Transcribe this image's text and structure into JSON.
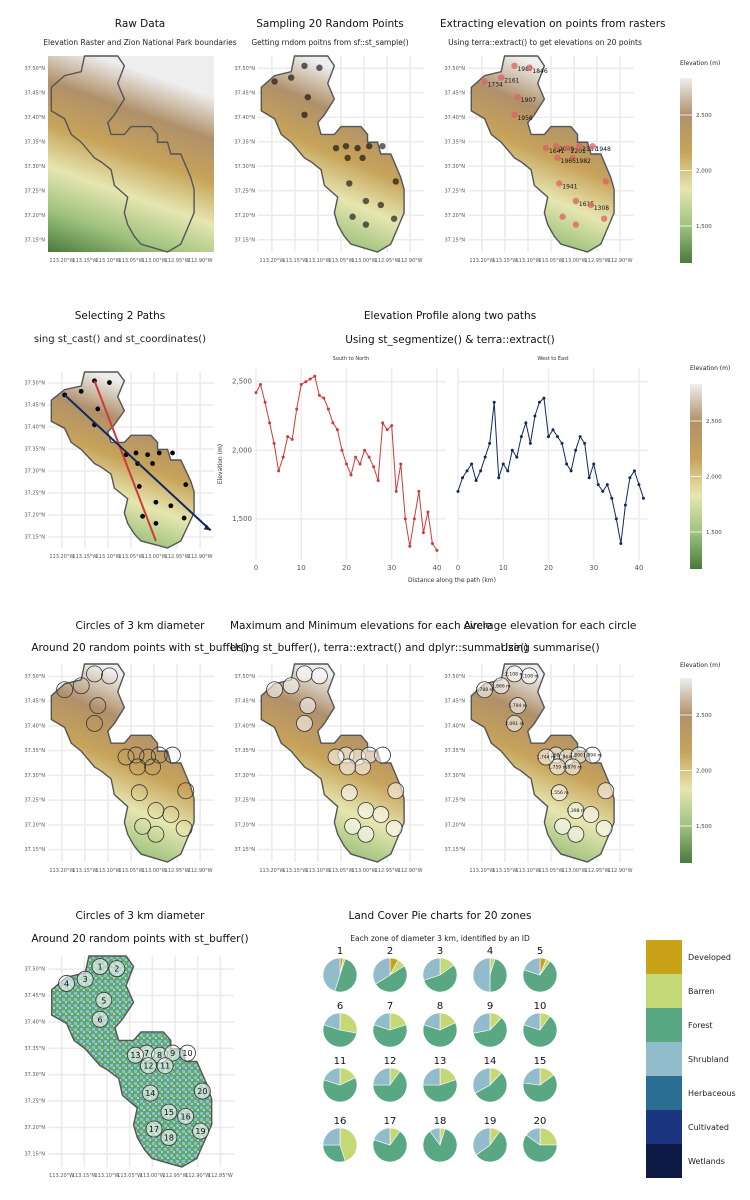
{
  "colors": {
    "shield_outline": "#555555",
    "grid": "#ebebeb",
    "red_path": "#d03a36",
    "blue_path": "#0f2a5c",
    "ramp": [
      "#4a7a3d",
      "#9fc27e",
      "#e6e6b0",
      "#c7a35a",
      "#b0906a",
      "#eeeeee"
    ]
  },
  "panels": {
    "raw": {
      "title": "Raw Data",
      "subtitle": "Elevation Raster and Zion National Park boundaries"
    },
    "sample": {
      "title": "Sampling 20 Random Points",
      "subtitle": "Getting rndom poitns from sf::st_sample()"
    },
    "extract": {
      "title": "Extracting elevation on points from rasters",
      "subtitle": "Using terra::extract() to get elevations on 20 points"
    },
    "paths": {
      "title": "Selecting 2 Paths",
      "subtitle": "sing st_cast() and st_coordinates()"
    },
    "profile": {
      "title": "Elevation Profile along two paths",
      "subtitle": "Using st_segmentize() & terra::extract()",
      "facet_left": "South to North",
      "facet_right": "West to East",
      "xlabel": "Distance along the path (km)",
      "ylabel": "Elevation (m)"
    },
    "circles": {
      "title": "Circles of 3 km diameter",
      "subtitle": "Around 20 random points with st_buffer()"
    },
    "minmax": {
      "title": "Maximum and Minimum elevations for each circle",
      "subtitle": "Using st_buffer(), terra::extract() and dplyr::summarize()"
    },
    "average": {
      "title": "Average elevation for each circle",
      "subtitle": "Using summarise()"
    },
    "landmap": {
      "title": "Circles of 3 km diameter",
      "subtitle": "Around 20 random points with st_buffer()"
    },
    "pies": {
      "title": "Land Cover Pie charts for 20 zones",
      "subtitle": "Each zone of diameter 3 km, identified by an ID"
    }
  },
  "map_axes": {
    "lat_ticks": [
      "37.50°N",
      "37.45°N",
      "37.40°N",
      "37.35°N",
      "37.30°N",
      "37.25°N",
      "37.20°N",
      "37.15°N"
    ],
    "lon_ticks": [
      "113.20°W",
      "113.15°W",
      "113.10°W",
      "113.05°W",
      "113.00°W",
      "112.95°W",
      "112.90°W"
    ],
    "lon_ticks_landmap": [
      "113.20°W",
      "113.15°W",
      "113.10°W",
      "113.05°W",
      "113.00°W",
      "112.95°W",
      "112.90°W",
      "112.85°W"
    ]
  },
  "elevation_legend": {
    "title": "Elevation (m)",
    "breaks": [
      "2,500",
      "2,000",
      "1,500"
    ]
  },
  "extract_labels": [
    "1987",
    "1846",
    "2161",
    "1734",
    "1907",
    "1956",
    "2049",
    "2201",
    "2187",
    "1948",
    "1982",
    "1965",
    "1641",
    "1941",
    "1615",
    "1308"
  ],
  "average_labels": [
    "2,108 m",
    "2,108 m",
    "1,866 m",
    "1,788 m",
    "1,794 m",
    "2,091 m",
    "1,968 m",
    "1,964 m",
    "1,890 m",
    "1,994 m",
    "1,876 m",
    "1,759 m",
    "1,744 m",
    "1,556 m",
    "1,398 m"
  ],
  "chart_data": [
    {
      "type": "line",
      "title": "South to North",
      "xlabel": "Distance along the path (km)",
      "ylabel": "Elevation (m)",
      "xlim": [
        0,
        42
      ],
      "ylim": [
        1200,
        2600
      ],
      "x_ticks": [
        "0",
        "10",
        "20",
        "30",
        "40"
      ],
      "y_ticks": [
        "1,500",
        "2,000",
        "2,500"
      ],
      "x": [
        0,
        1,
        2,
        3,
        4,
        5,
        6,
        7,
        8,
        9,
        10,
        11,
        12,
        13,
        14,
        15,
        16,
        17,
        18,
        19,
        20,
        21,
        22,
        23,
        24,
        25,
        26,
        27,
        28,
        29,
        30,
        31,
        32,
        33,
        34,
        35,
        36,
        37,
        38,
        39,
        40
      ],
      "values": [
        2420,
        2480,
        2350,
        2200,
        2050,
        1850,
        1950,
        2100,
        2080,
        2300,
        2480,
        2500,
        2520,
        2540,
        2400,
        2380,
        2300,
        2200,
        2150,
        2000,
        1900,
        1820,
        1950,
        1900,
        2000,
        1950,
        1880,
        1780,
        2200,
        2150,
        2180,
        1700,
        1900,
        1500,
        1300,
        1500,
        1700,
        1400,
        1550,
        1320,
        1270
      ]
    },
    {
      "type": "line",
      "title": "West to East",
      "xlabel": "Distance along the path (km)",
      "ylabel": "Elevation (m)",
      "xlim": [
        0,
        42
      ],
      "ylim": [
        1200,
        2600
      ],
      "x_ticks": [
        "0",
        "10",
        "20",
        "30",
        "40"
      ],
      "y_ticks": [
        "1,500",
        "2,000",
        "2,500"
      ],
      "x": [
        0,
        1,
        2,
        3,
        4,
        5,
        6,
        7,
        8,
        9,
        10,
        11,
        12,
        13,
        14,
        15,
        16,
        17,
        18,
        19,
        20,
        21,
        22,
        23,
        24,
        25,
        26,
        27,
        28,
        29,
        30,
        31,
        32,
        33,
        34,
        35,
        36,
        37,
        38,
        39,
        40,
        41
      ],
      "values": [
        1700,
        1800,
        1850,
        1900,
        1780,
        1850,
        1950,
        2050,
        2350,
        1800,
        1900,
        1850,
        2000,
        1950,
        2100,
        2200,
        2050,
        2250,
        2350,
        2380,
        2100,
        2150,
        2100,
        2050,
        1900,
        1850,
        2000,
        2100,
        2050,
        1800,
        1900,
        1750,
        1700,
        1750,
        1650,
        1500,
        1320,
        1600,
        1800,
        1850,
        1750,
        1650
      ]
    },
    {
      "type": "pie",
      "title": "Land Cover Pie charts for 20 zones",
      "categories": [
        "Developed",
        "Barren",
        "Forest",
        "Shrubland",
        "Herbaceous",
        "Cultivated",
        "Wetlands"
      ],
      "colors": [
        "#c9a21a",
        "#c5d876",
        "#5aa784",
        "#92bccb",
        "#2b6e93",
        "#1b3580",
        "#0c1a45"
      ],
      "zones": [
        {
          "id": "1",
          "values": [
            0.03,
            0.02,
            0.5,
            0.45,
            0,
            0,
            0
          ]
        },
        {
          "id": "2",
          "values": [
            0.08,
            0.08,
            0.5,
            0.34,
            0,
            0,
            0
          ]
        },
        {
          "id": "3",
          "values": [
            0.0,
            0.15,
            0.55,
            0.3,
            0,
            0,
            0
          ]
        },
        {
          "id": "4",
          "values": [
            0.0,
            0.05,
            0.45,
            0.5,
            0,
            0,
            0
          ]
        },
        {
          "id": "5",
          "values": [
            0.06,
            0.04,
            0.7,
            0.2,
            0,
            0,
            0
          ]
        },
        {
          "id": "6",
          "values": [
            0.0,
            0.28,
            0.52,
            0.2,
            0,
            0,
            0
          ]
        },
        {
          "id": "7",
          "values": [
            0.0,
            0.2,
            0.6,
            0.2,
            0,
            0,
            0
          ]
        },
        {
          "id": "8",
          "values": [
            0.0,
            0.18,
            0.62,
            0.2,
            0,
            0,
            0
          ]
        },
        {
          "id": "9",
          "values": [
            0.0,
            0.12,
            0.6,
            0.28,
            0,
            0,
            0
          ]
        },
        {
          "id": "10",
          "values": [
            0.0,
            0.1,
            0.7,
            0.2,
            0,
            0,
            0
          ]
        },
        {
          "id": "11",
          "values": [
            0.0,
            0.18,
            0.62,
            0.2,
            0,
            0,
            0
          ]
        },
        {
          "id": "12",
          "values": [
            0.0,
            0.1,
            0.65,
            0.25,
            0,
            0,
            0
          ]
        },
        {
          "id": "13",
          "values": [
            0.0,
            0.2,
            0.55,
            0.25,
            0,
            0,
            0
          ]
        },
        {
          "id": "14",
          "values": [
            0.0,
            0.12,
            0.55,
            0.33,
            0,
            0,
            0
          ]
        },
        {
          "id": "15",
          "values": [
            0.0,
            0.15,
            0.62,
            0.23,
            0,
            0,
            0
          ]
        },
        {
          "id": "16",
          "values": [
            0.0,
            0.45,
            0.3,
            0.25,
            0,
            0,
            0
          ]
        },
        {
          "id": "17",
          "values": [
            0.0,
            0.1,
            0.7,
            0.2,
            0,
            0,
            0
          ]
        },
        {
          "id": "18",
          "values": [
            0.0,
            0.05,
            0.85,
            0.1,
            0,
            0,
            0
          ]
        },
        {
          "id": "19",
          "values": [
            0.0,
            0.1,
            0.55,
            0.35,
            0,
            0,
            0
          ]
        },
        {
          "id": "20",
          "values": [
            0.0,
            0.25,
            0.6,
            0.15,
            0,
            0,
            0
          ]
        }
      ]
    }
  ]
}
